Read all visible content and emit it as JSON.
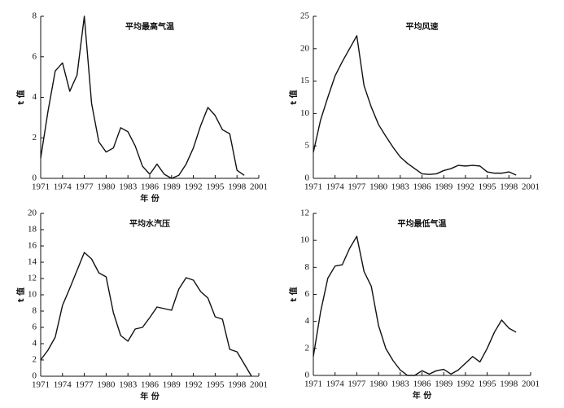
{
  "chart_data": [
    {
      "type": "line",
      "title": "平均最高气温",
      "x_label": "年 份",
      "y_label": "t 值",
      "x": [
        1971,
        1972,
        1973,
        1974,
        1975,
        1976,
        1977,
        1978,
        1979,
        1980,
        1981,
        1982,
        1983,
        1984,
        1985,
        1986,
        1987,
        1988,
        1989,
        1990,
        1991,
        1992,
        1993,
        1994,
        1995,
        1996,
        1997,
        1998,
        1999
      ],
      "values": [
        1.0,
        3.3,
        5.3,
        5.7,
        4.3,
        5.1,
        8.0,
        3.7,
        1.8,
        1.3,
        1.5,
        2.5,
        2.3,
        1.6,
        0.6,
        0.2,
        0.7,
        0.2,
        0.0,
        0.15,
        0.7,
        1.5,
        2.6,
        3.5,
        3.1,
        2.4,
        2.2,
        0.4,
        0.15
      ],
      "color": "#111111",
      "xlim": [
        1971,
        2001
      ],
      "xticks": [
        1971,
        1974,
        1977,
        1980,
        1983,
        1986,
        1989,
        1992,
        1995,
        1998,
        2001
      ],
      "ylim": [
        0,
        8
      ],
      "yticks": [
        0,
        2,
        4,
        6,
        8
      ]
    },
    {
      "type": "line",
      "title": "平均风速",
      "y_label": "t 值",
      "x": [
        1971,
        1972,
        1973,
        1974,
        1975,
        1976,
        1977,
        1978,
        1979,
        1980,
        1981,
        1982,
        1983,
        1984,
        1985,
        1986,
        1987,
        1988,
        1989,
        1990,
        1991,
        1992,
        1993,
        1994,
        1995,
        1996,
        1997,
        1998,
        1999
      ],
      "values": [
        4,
        9,
        12.5,
        15.8,
        18,
        20,
        22,
        14.3,
        11,
        8.3,
        6.5,
        4.8,
        3.3,
        2.3,
        1.5,
        0.7,
        0.6,
        0.7,
        1.2,
        1.5,
        2.0,
        1.9,
        2.0,
        1.9,
        1.0,
        0.8,
        0.8,
        1.0,
        0.5
      ],
      "color": "#111111",
      "xlim": [
        1971,
        2001
      ],
      "xticks": [
        1971,
        1974,
        1977,
        1980,
        1983,
        1986,
        1989,
        1992,
        1995,
        1998,
        2001
      ],
      "ylim": [
        0,
        25
      ],
      "yticks": [
        0,
        5,
        10,
        15,
        20,
        25
      ]
    },
    {
      "type": "line",
      "title": "平均水汽压",
      "x_label": "年 份",
      "y_label": "t 值",
      "x": [
        1971,
        1972,
        1973,
        1974,
        1975,
        1976,
        1977,
        1978,
        1979,
        1980,
        1981,
        1982,
        1983,
        1984,
        1985,
        1986,
        1987,
        1988,
        1989,
        1990,
        1991,
        1992,
        1993,
        1994,
        1995,
        1996,
        1997,
        1998,
        1999,
        2000
      ],
      "values": [
        2,
        3.2,
        4.8,
        8.7,
        10.8,
        13,
        15.2,
        14.4,
        12.7,
        12.2,
        7.8,
        5,
        4.3,
        5.8,
        6,
        7.2,
        8.5,
        8.3,
        8.1,
        10.7,
        12.1,
        11.8,
        10.4,
        9.6,
        7.3,
        7,
        3.3,
        3,
        1.5,
        0
      ],
      "color": "#111111",
      "xlim": [
        1971,
        2001
      ],
      "xticks": [
        1971,
        1974,
        1977,
        1980,
        1983,
        1986,
        1989,
        1992,
        1995,
        1998,
        2001
      ],
      "ylim": [
        0,
        20
      ],
      "yticks": [
        0,
        2,
        4,
        6,
        8,
        10,
        12,
        14,
        16,
        18,
        20
      ]
    },
    {
      "type": "line",
      "title": "平均最低气温",
      "x_label": "年 份",
      "y_label": "t 值",
      "x": [
        1971,
        1972,
        1973,
        1974,
        1975,
        1976,
        1977,
        1978,
        1979,
        1980,
        1981,
        1982,
        1983,
        1984,
        1985,
        1986,
        1987,
        1988,
        1989,
        1990,
        1991,
        1992,
        1993,
        1994,
        1995,
        1996,
        1997,
        1998,
        1999
      ],
      "values": [
        1.4,
        4.7,
        7.2,
        8.1,
        8.2,
        9.4,
        10.3,
        7.7,
        6.6,
        3.7,
        2.0,
        1.1,
        0.4,
        0.0,
        0.0,
        0.35,
        0.1,
        0.35,
        0.45,
        0.1,
        0.4,
        0.9,
        1.4,
        1.0,
        2.0,
        3.2,
        4.1,
        3.5,
        3.2
      ],
      "color": "#111111",
      "xlim": [
        1971,
        2001
      ],
      "xticks": [
        1971,
        1974,
        1977,
        1980,
        1983,
        1986,
        1989,
        1992,
        1995,
        1998,
        2001
      ],
      "ylim": [
        0,
        12
      ],
      "yticks": [
        0,
        2,
        4,
        6,
        8,
        10,
        12
      ]
    }
  ]
}
